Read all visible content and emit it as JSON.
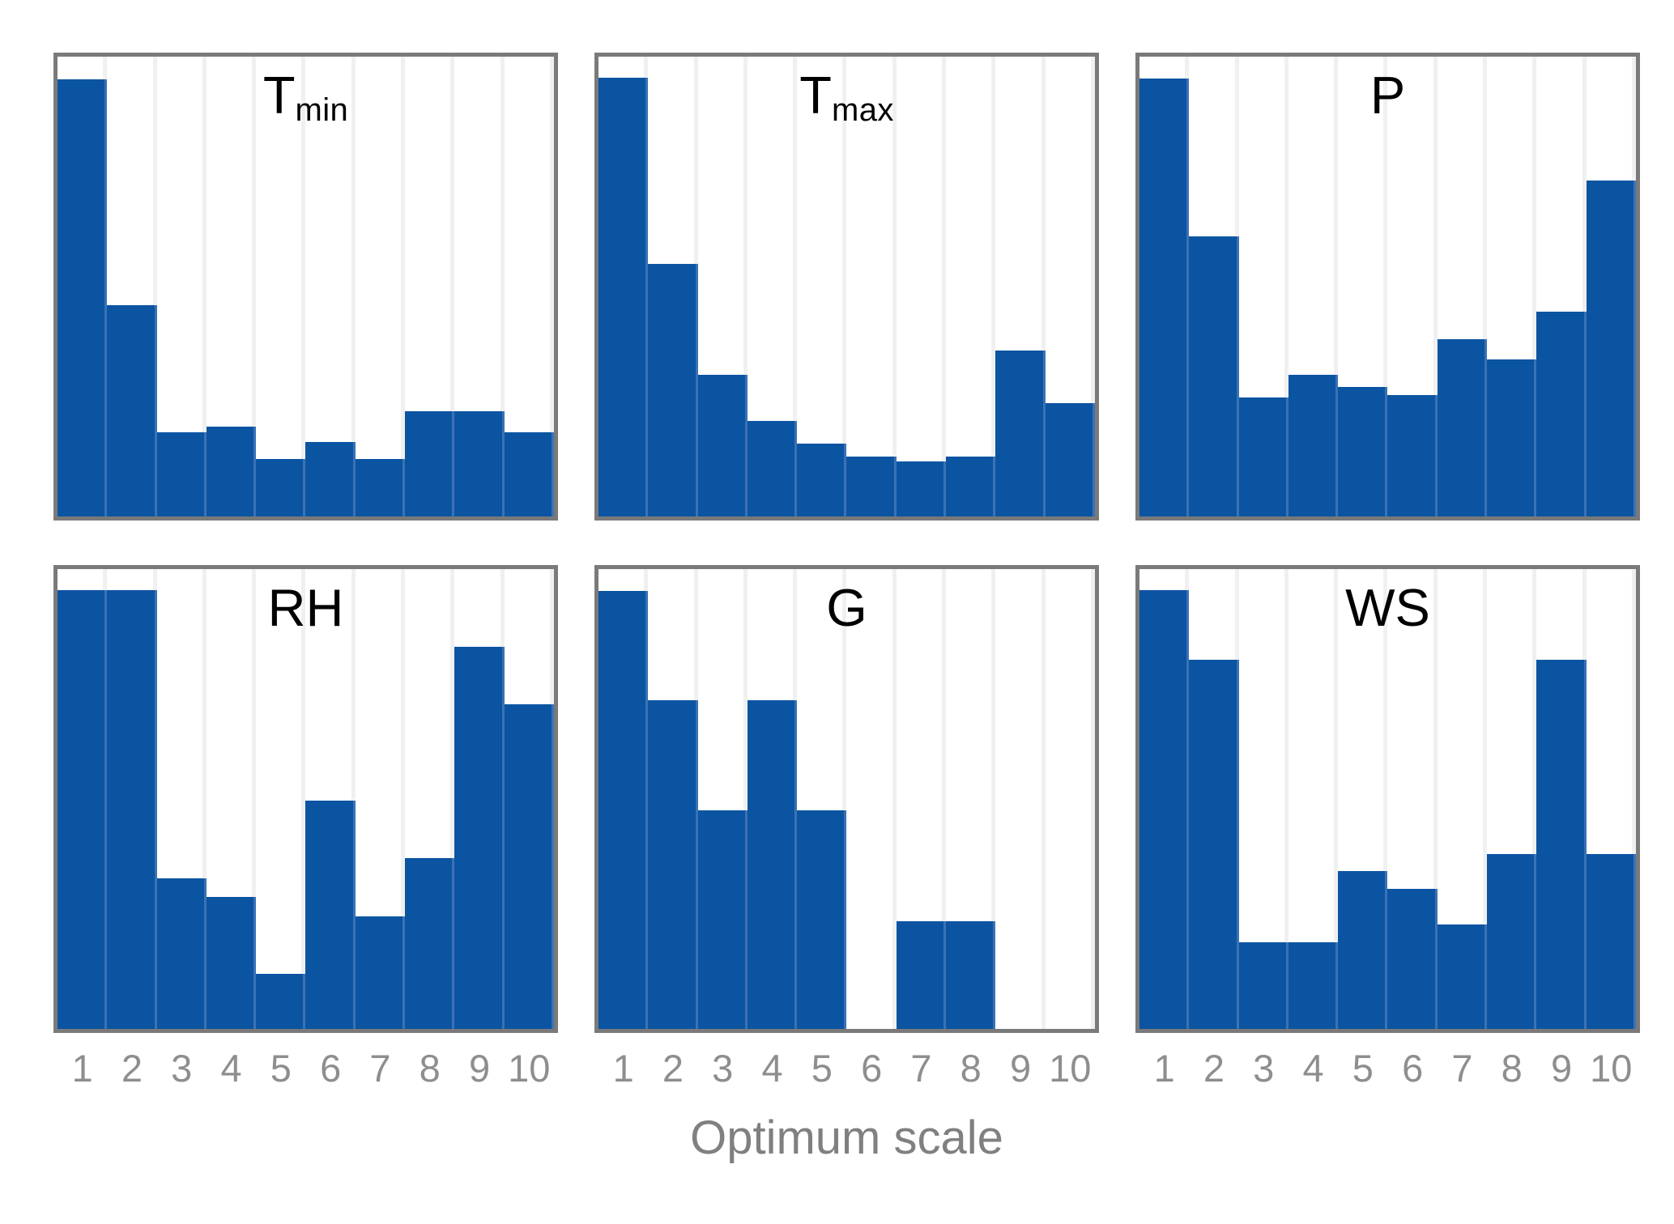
{
  "figure": {
    "xlabel": "Optimum scale",
    "x_ticks": [
      "1",
      "2",
      "3",
      "4",
      "5",
      "6",
      "7",
      "8",
      "9",
      "10"
    ],
    "colors": {
      "bar_fill": "#0b54a2",
      "bar_edge": "#3a72b4",
      "panel_border": "#7a7a7a",
      "gridline": "#f0f0f0",
      "tick_label": "#8e8e8e",
      "xlabel": "#808080",
      "title": "#000000",
      "background": "#ffffff"
    }
  },
  "chart_data": {
    "type": "bar",
    "subtype": "histogram-small-multiples",
    "layout": {
      "grid": "2 rows x 3 columns",
      "shared_x": true,
      "x_ticks_shown_only_on_bottom_row": true,
      "y_axis": "none (no y ticks or labels shown)",
      "grid_on": "faint vertical gridlines at bin edges"
    },
    "categories": [
      1,
      2,
      3,
      4,
      5,
      6,
      7,
      8,
      9,
      10
    ],
    "xlabel": "Optimum scale",
    "values_note": "No y-axis labels are visible; values are bar heights as a fraction of the panel inner height, read from pixels.",
    "panels": [
      {
        "id": "tmin",
        "title_main": "T",
        "title_sub": "min",
        "values_frac": [
          0.95,
          0.459,
          0.183,
          0.195,
          0.125,
          0.162,
          0.125,
          0.229,
          0.229,
          0.183
        ]
      },
      {
        "id": "tmax",
        "title_main": "T",
        "title_sub": "max",
        "values_frac": [
          0.955,
          0.549,
          0.309,
          0.207,
          0.158,
          0.131,
          0.119,
          0.131,
          0.361,
          0.246
        ]
      },
      {
        "id": "p",
        "title_main": "P",
        "title_sub": "",
        "values_frac": [
          0.953,
          0.61,
          0.258,
          0.309,
          0.282,
          0.264,
          0.386,
          0.342,
          0.445,
          0.73
        ]
      },
      {
        "id": "rh",
        "title_main": "RH",
        "title_sub": "",
        "values_frac": [
          0.955,
          0.955,
          0.328,
          0.287,
          0.12,
          0.496,
          0.245,
          0.371,
          0.831,
          0.706
        ]
      },
      {
        "id": "g",
        "title_main": "G",
        "title_sub": "",
        "values_frac": [
          0.953,
          0.715,
          0.475,
          0.715,
          0.475,
          0.0,
          0.234,
          0.234,
          0.0,
          0.0
        ]
      },
      {
        "id": "ws",
        "title_main": "WS",
        "title_sub": "",
        "values_frac": [
          0.955,
          0.802,
          0.189,
          0.189,
          0.343,
          0.305,
          0.227,
          0.381,
          0.802,
          0.381
        ]
      }
    ]
  }
}
